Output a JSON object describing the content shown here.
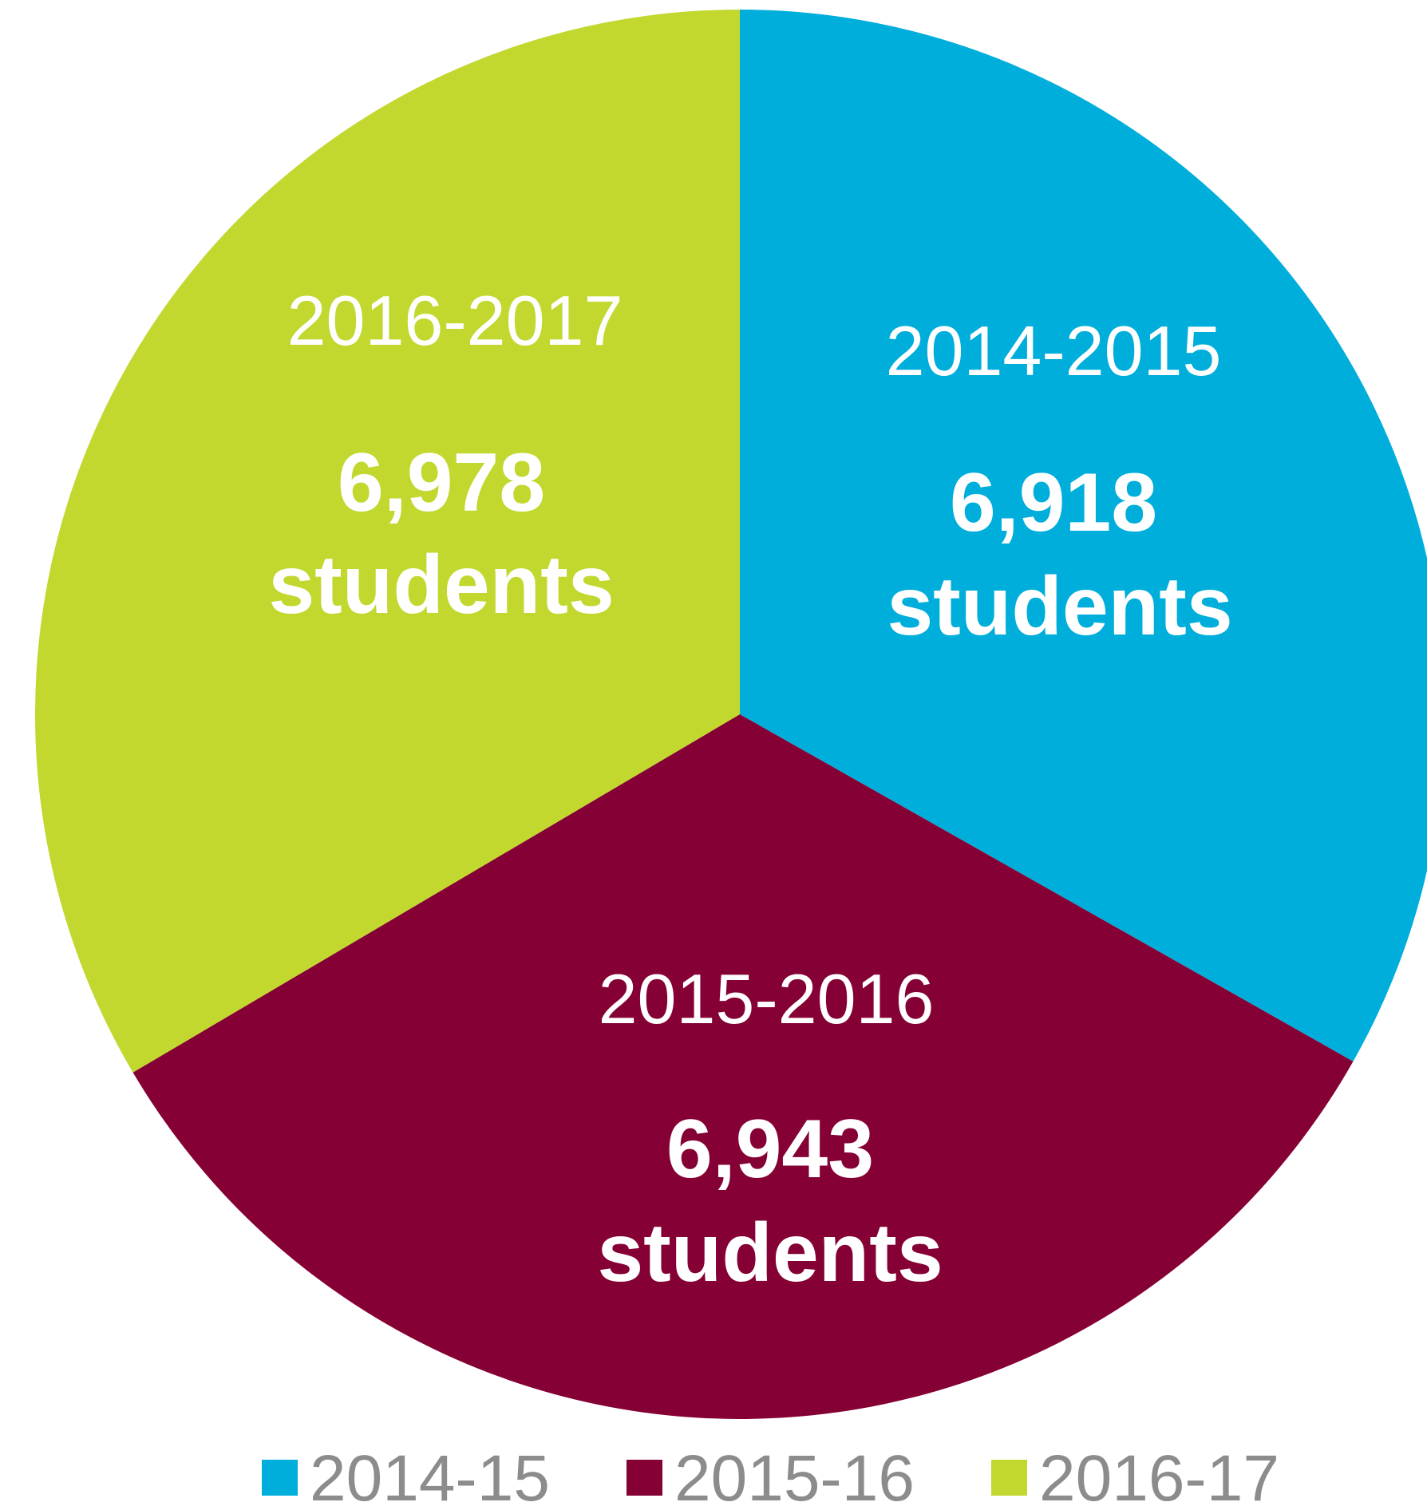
{
  "chart_data": {
    "type": "pie",
    "title": "",
    "slices": [
      {
        "legend": "2014-15",
        "period_label": "2014-2015",
        "value": 6918,
        "value_label": "6,918",
        "unit_label": "students",
        "color": "#00AEDB"
      },
      {
        "legend": "2015-16",
        "period_label": "2015-2016",
        "value": 6943,
        "value_label": "6,943",
        "unit_label": "students",
        "color": "#850034"
      },
      {
        "legend": "2016-17",
        "period_label": "2016-2017",
        "value": 6978,
        "value_label": "6,978",
        "unit_label": "students",
        "color": "#C2D82F"
      }
    ],
    "start_angle_deg": 0,
    "direction": "clockwise",
    "legend_position": "bottom"
  }
}
